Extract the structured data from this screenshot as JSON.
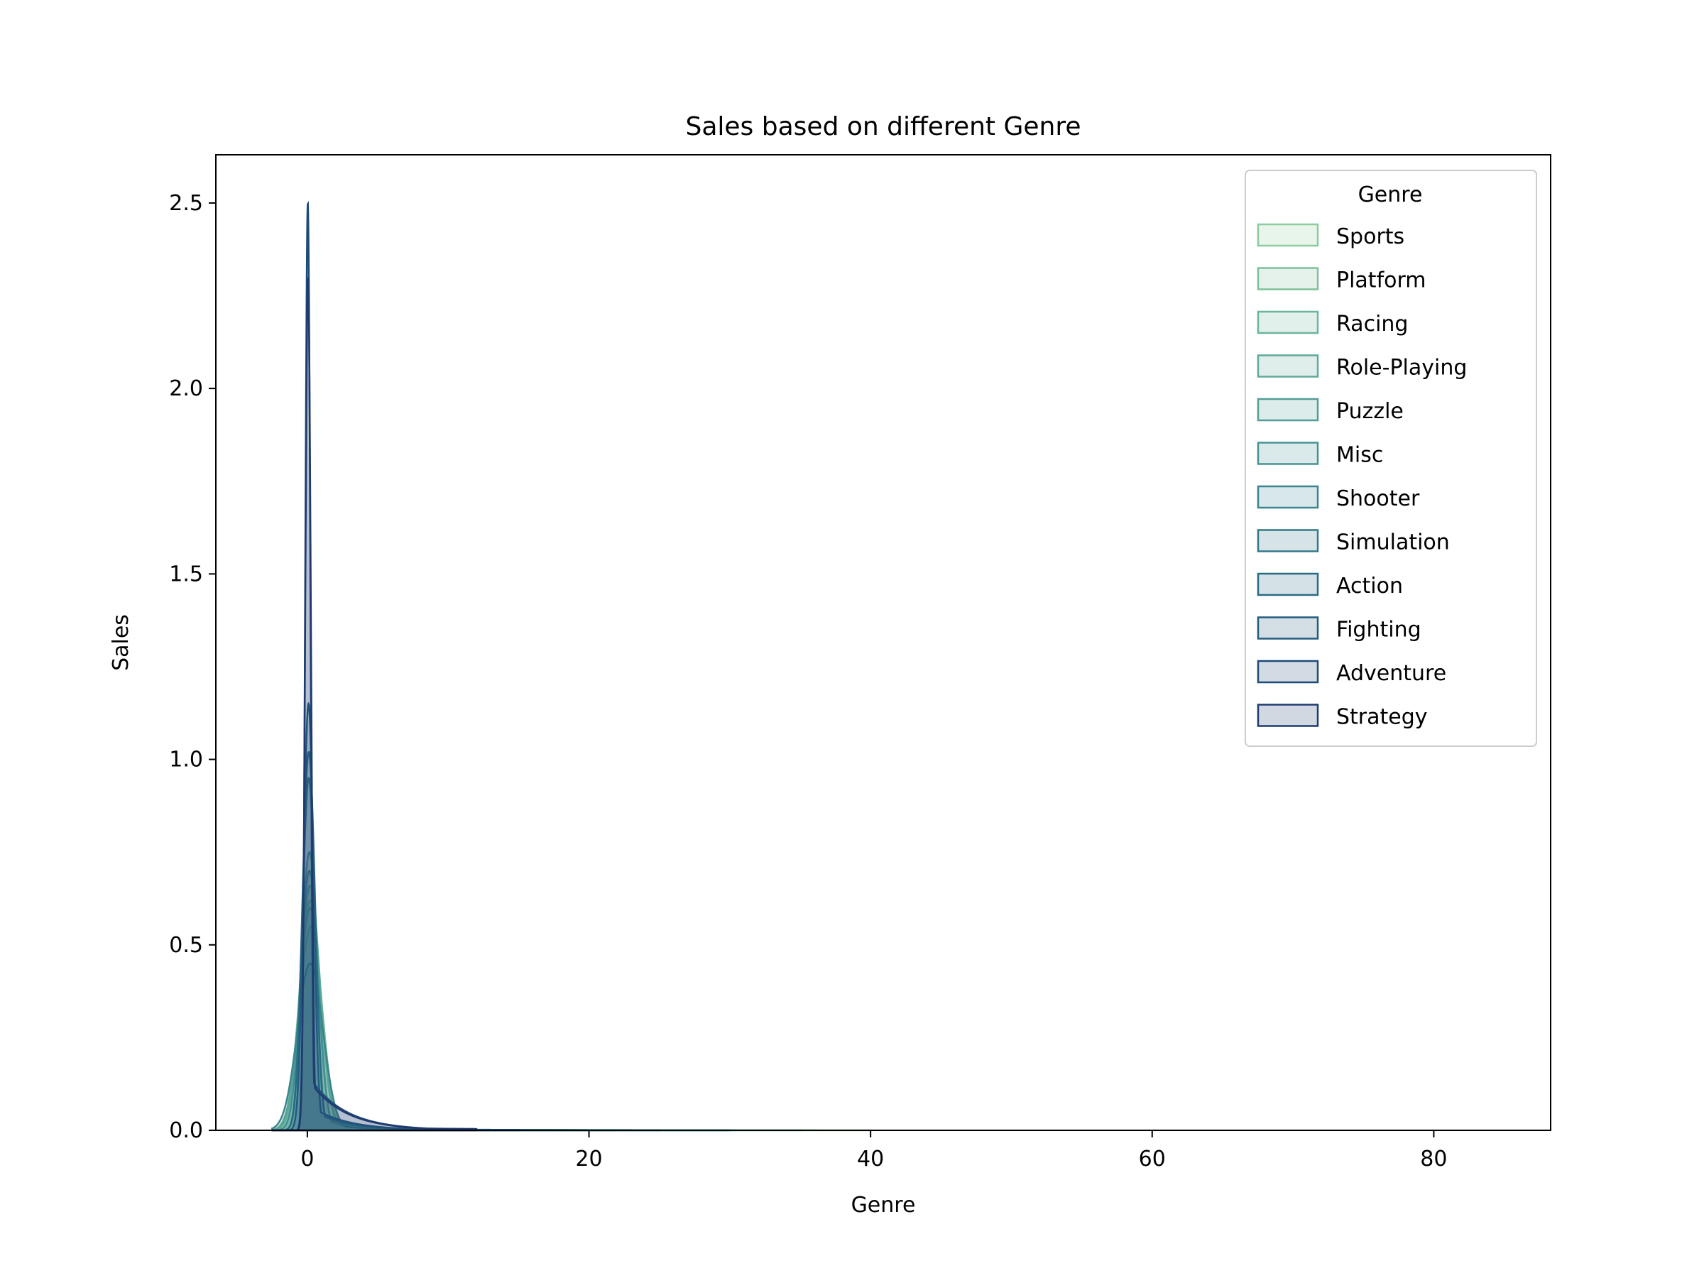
{
  "chart_data": {
    "type": "area",
    "title": "Sales based on different Genre",
    "xlabel": "Genre",
    "ylabel": "Sales",
    "xlim": [
      -6.5,
      88.3
    ],
    "ylim": [
      0,
      2.63
    ],
    "x_ticks": [
      0,
      20,
      40,
      60,
      80
    ],
    "y_ticks": [
      0.0,
      0.5,
      1.0,
      1.5,
      2.0,
      2.5
    ],
    "x_tick_labels": [
      "0",
      "20",
      "40",
      "60",
      "80"
    ],
    "y_tick_labels": [
      "0.0",
      "0.5",
      "1.0",
      "1.5",
      "2.0",
      "2.5"
    ],
    "grid": false,
    "legend": {
      "title": "Genre",
      "position": "top-right"
    },
    "series": [
      {
        "name": "Sports",
        "color": "#8ccb9b",
        "peak_x": 0.2,
        "peak": 0.62,
        "width": 0.75,
        "tail": 40
      },
      {
        "name": "Platform",
        "color": "#7cc09a",
        "peak_x": 0.25,
        "peak": 0.55,
        "width": 0.8,
        "tail": 30
      },
      {
        "name": "Racing",
        "color": "#6bb59a",
        "peak_x": 0.2,
        "peak": 0.66,
        "width": 0.7,
        "tail": 35
      },
      {
        "name": "Role-Playing",
        "color": "#5eaa99",
        "peak_x": 0.2,
        "peak": 0.6,
        "width": 0.75,
        "tail": 30
      },
      {
        "name": "Puzzle",
        "color": "#529e97",
        "peak_x": 0.15,
        "peak": 0.75,
        "width": 0.6,
        "tail": 25
      },
      {
        "name": "Misc",
        "color": "#469294",
        "peak_x": 0.15,
        "peak": 0.7,
        "width": 0.6,
        "tail": 22
      },
      {
        "name": "Shooter",
        "color": "#3b858f",
        "peak_x": 0.2,
        "peak": 0.45,
        "width": 0.9,
        "tail": 30
      },
      {
        "name": "Simulation",
        "color": "#317889",
        "peak_x": 0.1,
        "peak": 0.95,
        "width": 0.45,
        "tail": 20
      },
      {
        "name": "Action",
        "color": "#296a84",
        "peak_x": 0.1,
        "peak": 1.02,
        "width": 0.45,
        "tail": 25
      },
      {
        "name": "Fighting",
        "color": "#235b7e",
        "peak_x": 0.08,
        "peak": 1.15,
        "width": 0.35,
        "tail": 15
      },
      {
        "name": "Adventure",
        "color": "#1f4b77",
        "peak_x": 0.03,
        "peak": 2.5,
        "width": 0.18,
        "tail": 12
      },
      {
        "name": "Strategy",
        "color": "#1f3a6f",
        "peak_x": 0.05,
        "peak": 2.3,
        "width": 0.2,
        "tail": 12
      }
    ]
  }
}
